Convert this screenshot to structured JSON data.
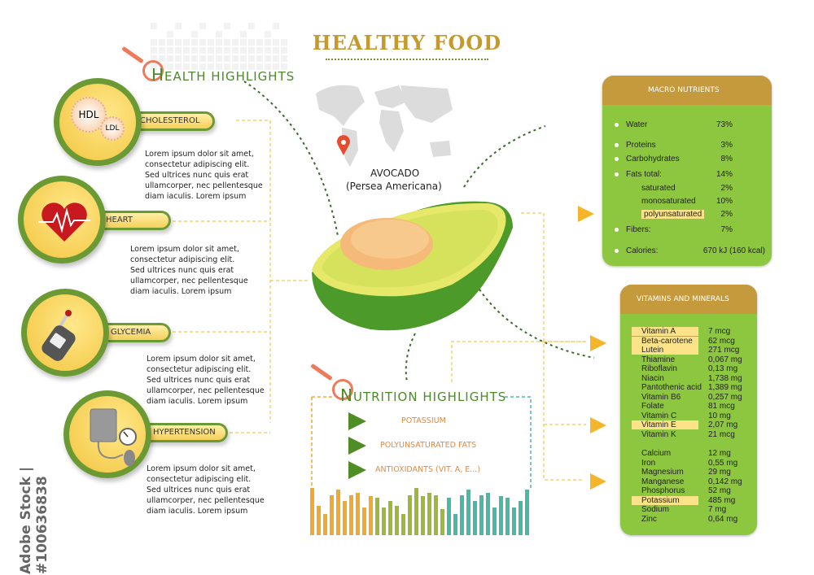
{
  "title": "HEALTHY FOOD",
  "watermark": "Adobe Stock | #100636838",
  "health_highlights": {
    "heading_first": "H",
    "heading_rest": "EALTH HIGHLIGHTS",
    "items": [
      {
        "label": "CHOLESTEROL",
        "icon": "hdl-ldl-icon",
        "icon_text": [
          "HDL",
          "LDL"
        ],
        "text": "Lorem ipsum dolor sit amet,\nconsectetur adipiscing elit.\nSed ultrices nunc quis erat\nullamcorper, nec pellentesque\ndiam iaculis. Lorem ipsum"
      },
      {
        "label": "HEART",
        "icon": "heart-icon",
        "text": "Lorem ipsum dolor sit amet,\nconsectetur adipiscing elit.\nSed ultrices nunc quis erat\nullamcorper, nec pellentesque\ndiam iaculis. Lorem ipsum"
      },
      {
        "label": "GLYCEMIA",
        "icon": "glucose-meter-icon",
        "text": "Lorem ipsum dolor sit amet,\nconsectetur adipiscing elit.\nSed ultrices nunc quis erat\nullamcorper, nec pellentesque\ndiam iaculis. Lorem ipsum"
      },
      {
        "label": "HYPERTENSION",
        "icon": "blood-pressure-monitor-icon",
        "text": "Lorem ipsum dolor sit amet,\nconsectetur adipiscing elit.\nSed ultrices nunc quis erat\nullamcorper, nec pellentesque\ndiam iaculis. Lorem ipsum"
      }
    ]
  },
  "food": {
    "name": "AVOCADO",
    "latin": "(Persea Americana)"
  },
  "macro": {
    "heading": "MACRO NUTRIENTS",
    "rows": [
      {
        "name": "Water",
        "value": "73%",
        "bullet": true
      },
      {
        "name": "Proteins",
        "value": "3%",
        "bullet": true
      },
      {
        "name": "Carbohydrates",
        "value": "8%",
        "bullet": true
      },
      {
        "name": "Fats total:",
        "value": "14%",
        "bullet": true
      },
      {
        "name": "saturated",
        "value": "2%"
      },
      {
        "name": "monosaturated",
        "value": "10%"
      },
      {
        "name": "polyunsaturated",
        "value": "2%",
        "highlight": true
      },
      {
        "name": "Fibers:",
        "value": "7%",
        "bullet": true
      },
      {
        "name": "Calories:",
        "value": "670 kJ (160 kcal)",
        "bullet": true
      }
    ]
  },
  "vitamins": {
    "heading": "VITAMINS AND MINERALS",
    "vitamins": [
      {
        "name": "Vitamin A",
        "value": "7 mcg",
        "highlight": true
      },
      {
        "name": "Beta-carotene",
        "value": "62 mcg",
        "highlight": true
      },
      {
        "name": "Lutein",
        "value": "271 mcg",
        "highlight": true
      },
      {
        "name": "Thiamine",
        "value": "0,067 mg"
      },
      {
        "name": "Riboflavin",
        "value": "0,13 mg"
      },
      {
        "name": "Niacin",
        "value": "1,738 mg"
      },
      {
        "name": "Pantothenic acid",
        "value": "1,389 mg"
      },
      {
        "name": "Vitamin B6",
        "value": "0,257 mg"
      },
      {
        "name": "Folate",
        "value": "81 mcg"
      },
      {
        "name": "Vitamin C",
        "value": "10 mg"
      },
      {
        "name": "Vitamin E",
        "value": "2,07 mg",
        "highlight": true
      },
      {
        "name": "Vitamin K",
        "value": "21 mcg"
      }
    ],
    "minerals": [
      {
        "name": "Calcium",
        "value": "12 mg"
      },
      {
        "name": "Iron",
        "value": "0,55 mg"
      },
      {
        "name": "Magnesium",
        "value": "29 mg"
      },
      {
        "name": "Manganese",
        "value": "0,142 mg"
      },
      {
        "name": "Phosphorus",
        "value": "52 mg"
      },
      {
        "name": "Potassium",
        "value": "485 mg",
        "highlight": true
      },
      {
        "name": "Sodium",
        "value": "7 mg"
      },
      {
        "name": "Zinc",
        "value": "0,64 mg"
      }
    ]
  },
  "nutrition_highlights": {
    "heading_first": "N",
    "heading_rest": "UTRITION HIGHLIGHTS",
    "items": [
      "POTASSIUM",
      "POLYUNSATURATED FATS",
      "ANTIOXIDANTS (VIT. A, E...)"
    ],
    "bars": {
      "orange": [
        100,
        62,
        45,
        84,
        97,
        72,
        84,
        90,
        59,
        82
      ],
      "green": [
        80,
        59,
        72,
        62,
        45,
        84,
        100,
        82,
        90,
        84,
        56
      ],
      "teal": [
        80,
        45,
        84,
        97,
        72,
        84,
        90,
        59,
        82,
        80,
        59,
        72,
        97
      ]
    }
  },
  "colors": {
    "gold": "#c49a3c",
    "green": "#8dc63f",
    "dark_green": "#6b9a35",
    "orange": "#f0a830",
    "teal": "#4bb8a4",
    "bar_green": "#9bb83a",
    "highlight": "#fce38a"
  }
}
